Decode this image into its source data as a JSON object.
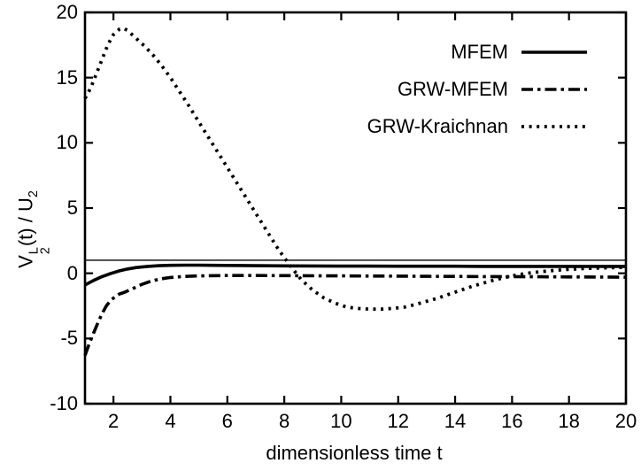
{
  "figure": {
    "background": "#ffffff",
    "ink": "#000000"
  },
  "chart_data": {
    "type": "line",
    "title": "",
    "xlabel": "dimensionless time t",
    "ylabel": "V2_L(t) / U2",
    "ylabel_parts": {
      "base": "V",
      "sup": "L",
      "sub": "2",
      "rest": "(t) / U",
      "rest_sub": "2"
    },
    "xlim": [
      1,
      20
    ],
    "ylim": [
      -10,
      20
    ],
    "xticks": [
      2,
      4,
      6,
      8,
      10,
      12,
      14,
      16,
      18,
      20
    ],
    "yticks": [
      -10,
      -5,
      0,
      5,
      10,
      15,
      20
    ],
    "grid": false,
    "legend_position": "top-right-inside",
    "reference_line": {
      "y": 1.0,
      "style": "thin"
    },
    "series": [
      {
        "name": "MFEM",
        "style": "solid",
        "points": [
          [
            1,
            -0.9
          ],
          [
            1.3,
            -0.55
          ],
          [
            1.6,
            -0.25
          ],
          [
            1.9,
            -0.02
          ],
          [
            2.2,
            0.18
          ],
          [
            2.5,
            0.33
          ],
          [
            2.8,
            0.44
          ],
          [
            3.2,
            0.53
          ],
          [
            3.6,
            0.58
          ],
          [
            4,
            0.61
          ],
          [
            4.5,
            0.62
          ],
          [
            5,
            0.62
          ],
          [
            5.5,
            0.61
          ],
          [
            6,
            0.6
          ],
          [
            7,
            0.58
          ],
          [
            8,
            0.57
          ],
          [
            9,
            0.56
          ],
          [
            10,
            0.55
          ],
          [
            11,
            0.55
          ],
          [
            12,
            0.54
          ],
          [
            13,
            0.54
          ],
          [
            14,
            0.54
          ],
          [
            15,
            0.53
          ],
          [
            16,
            0.53
          ],
          [
            17,
            0.53
          ],
          [
            18,
            0.53
          ],
          [
            19,
            0.53
          ],
          [
            20,
            0.53
          ]
        ]
      },
      {
        "name": "GRW-MFEM",
        "style": "dashdot",
        "points": [
          [
            1,
            -6.3
          ],
          [
            1.15,
            -5.4
          ],
          [
            1.3,
            -4.6
          ],
          [
            1.45,
            -3.8
          ],
          [
            1.6,
            -3.1
          ],
          [
            1.75,
            -2.5
          ],
          [
            1.9,
            -2.1
          ],
          [
            2.05,
            -1.8
          ],
          [
            2.2,
            -1.6
          ],
          [
            2.4,
            -1.45
          ],
          [
            2.6,
            -1.25
          ],
          [
            2.8,
            -1.05
          ],
          [
            3,
            -0.85
          ],
          [
            3.3,
            -0.62
          ],
          [
            3.6,
            -0.45
          ],
          [
            4,
            -0.32
          ],
          [
            4.5,
            -0.24
          ],
          [
            5,
            -0.2
          ],
          [
            6,
            -0.17
          ],
          [
            7,
            -0.17
          ],
          [
            8,
            -0.18
          ],
          [
            9,
            -0.19
          ],
          [
            10,
            -0.2
          ],
          [
            11,
            -0.21
          ],
          [
            12,
            -0.22
          ],
          [
            13,
            -0.23
          ],
          [
            14,
            -0.24
          ],
          [
            15,
            -0.25
          ],
          [
            16,
            -0.26
          ],
          [
            17,
            -0.27
          ],
          [
            18,
            -0.28
          ],
          [
            19,
            -0.29
          ],
          [
            20,
            -0.3
          ]
        ]
      },
      {
        "name": "GRW-Kraichnan",
        "style": "dotted",
        "points": [
          [
            1,
            13.4
          ],
          [
            1.2,
            14.2
          ],
          [
            1.4,
            15.3
          ],
          [
            1.6,
            16.4
          ],
          [
            1.8,
            17.5
          ],
          [
            2,
            18.3
          ],
          [
            2.2,
            18.7
          ],
          [
            2.35,
            18.8
          ],
          [
            2.5,
            18.6
          ],
          [
            2.7,
            18.2
          ],
          [
            2.9,
            17.8
          ],
          [
            3.1,
            17.4
          ],
          [
            3.4,
            16.7
          ],
          [
            3.7,
            15.9
          ],
          [
            4,
            15.0
          ],
          [
            4.3,
            14.0
          ],
          [
            4.6,
            13.0
          ],
          [
            5,
            11.6
          ],
          [
            5.4,
            10.2
          ],
          [
            5.8,
            8.8
          ],
          [
            6.2,
            7.4
          ],
          [
            6.6,
            6.0
          ],
          [
            7,
            4.6
          ],
          [
            7.4,
            3.2
          ],
          [
            7.8,
            1.8
          ],
          [
            8.2,
            0.6
          ],
          [
            8.6,
            -0.5
          ],
          [
            9,
            -1.3
          ],
          [
            9.4,
            -1.9
          ],
          [
            9.8,
            -2.3
          ],
          [
            10.2,
            -2.6
          ],
          [
            10.6,
            -2.7
          ],
          [
            11,
            -2.75
          ],
          [
            11.4,
            -2.75
          ],
          [
            11.8,
            -2.7
          ],
          [
            12.2,
            -2.6
          ],
          [
            12.6,
            -2.4
          ],
          [
            13,
            -2.15
          ],
          [
            13.4,
            -1.9
          ],
          [
            13.8,
            -1.6
          ],
          [
            14.2,
            -1.3
          ],
          [
            14.6,
            -1.0
          ],
          [
            15,
            -0.75
          ],
          [
            15.4,
            -0.5
          ],
          [
            15.8,
            -0.3
          ],
          [
            16.2,
            -0.12
          ],
          [
            16.6,
            0.02
          ],
          [
            17,
            0.12
          ],
          [
            17.5,
            0.22
          ],
          [
            18,
            0.3
          ],
          [
            18.5,
            0.36
          ],
          [
            19,
            0.4
          ],
          [
            19.5,
            0.43
          ],
          [
            20,
            0.45
          ]
        ]
      }
    ]
  }
}
